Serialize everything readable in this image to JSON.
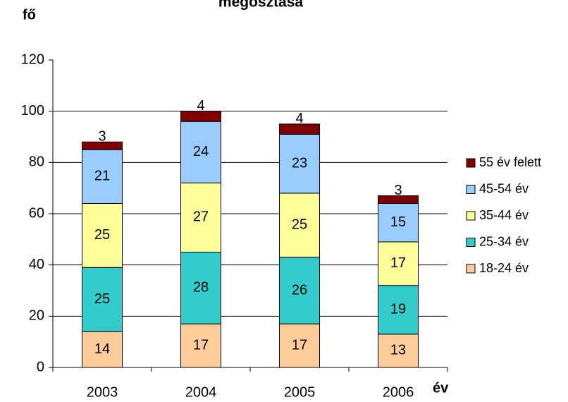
{
  "chart_data": {
    "type": "stacked_bar",
    "title": "megosztása",
    "ylabel": "fő",
    "xlabel": "év",
    "categories": [
      "2003",
      "2004",
      "2005",
      "2006"
    ],
    "series": [
      {
        "name": "18-24 év",
        "color": "#FFCC99",
        "values": [
          14,
          17,
          17,
          13
        ]
      },
      {
        "name": "25-34 év",
        "color": "#33CCCC",
        "values": [
          25,
          28,
          26,
          19
        ]
      },
      {
        "name": "35-44 év",
        "color": "#FFFF99",
        "values": [
          25,
          27,
          25,
          17
        ]
      },
      {
        "name": "45-54 év",
        "color": "#99CCFF",
        "values": [
          21,
          24,
          23,
          15
        ]
      },
      {
        "name": "55 év felett",
        "color": "#800000",
        "values": [
          3,
          4,
          4,
          3
        ]
      }
    ],
    "ylim": [
      0,
      120
    ],
    "yticks": [
      0,
      20,
      40,
      60,
      80,
      100,
      120
    ],
    "grid": true,
    "legend": "right"
  }
}
